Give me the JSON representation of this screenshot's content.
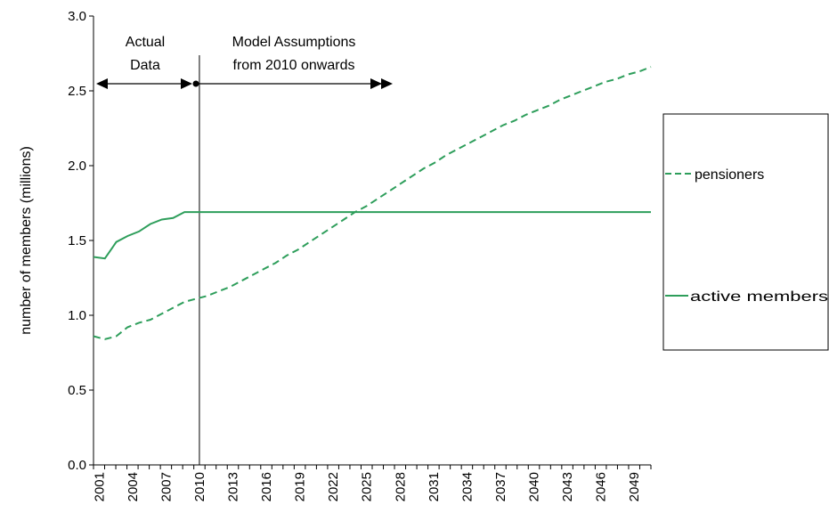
{
  "chart_data": {
    "type": "line",
    "title": "",
    "xlabel": "",
    "ylabel": "number of members (millions)",
    "x": [
      2001,
      2002,
      2003,
      2004,
      2005,
      2006,
      2007,
      2008,
      2009,
      2010,
      2011,
      2012,
      2013,
      2014,
      2015,
      2016,
      2017,
      2018,
      2019,
      2020,
      2021,
      2022,
      2023,
      2024,
      2025,
      2026,
      2027,
      2028,
      2029,
      2030,
      2031,
      2032,
      2033,
      2034,
      2035,
      2036,
      2037,
      2038,
      2039,
      2040,
      2041,
      2042,
      2043,
      2044,
      2045,
      2046,
      2047,
      2048,
      2049,
      2050
    ],
    "xticks": [
      "2001",
      "2004",
      "2007",
      "2010",
      "2013",
      "2016",
      "2019",
      "2022",
      "2025",
      "2028",
      "2031",
      "2034",
      "2037",
      "2040",
      "2043",
      "2046",
      "2049"
    ],
    "ylim": [
      0,
      3.0
    ],
    "yticks": [
      "0.0",
      "0.5",
      "1.0",
      "1.5",
      "2.0",
      "2.5",
      "3.0"
    ],
    "grid": false,
    "legend_position": "right",
    "series": [
      {
        "name": "pensioners",
        "style": "dashed",
        "color": "#2E9E5B",
        "values": [
          0.86,
          0.84,
          0.86,
          0.92,
          0.95,
          0.97,
          1.01,
          1.05,
          1.09,
          1.11,
          1.13,
          1.16,
          1.19,
          1.23,
          1.27,
          1.31,
          1.35,
          1.4,
          1.44,
          1.49,
          1.54,
          1.59,
          1.64,
          1.69,
          1.73,
          1.78,
          1.83,
          1.88,
          1.93,
          1.98,
          2.02,
          2.07,
          2.11,
          2.15,
          2.19,
          2.23,
          2.27,
          2.3,
          2.34,
          2.37,
          2.4,
          2.44,
          2.47,
          2.5,
          2.53,
          2.56,
          2.58,
          2.61,
          2.63,
          2.66
        ]
      },
      {
        "name": "active members",
        "style": "solid",
        "color": "#2E9E5B",
        "values": [
          1.39,
          1.38,
          1.49,
          1.53,
          1.56,
          1.61,
          1.64,
          1.65,
          1.69,
          1.69,
          1.69,
          1.69,
          1.69,
          1.69,
          1.69,
          1.69,
          1.69,
          1.69,
          1.69,
          1.69,
          1.69,
          1.69,
          1.69,
          1.69,
          1.69,
          1.69,
          1.69,
          1.69,
          1.69,
          1.69,
          1.69,
          1.69,
          1.69,
          1.69,
          1.69,
          1.69,
          1.69,
          1.69,
          1.69,
          1.69,
          1.69,
          1.69,
          1.69,
          1.69,
          1.69,
          1.69,
          1.69,
          1.69,
          1.69,
          1.69
        ]
      }
    ],
    "annotations": {
      "actual_line1": "Actual",
      "actual_line2": "Data",
      "model_line1": "Model Assumptions",
      "model_line2": "from 2010 onwards",
      "divider_year": 2010
    }
  }
}
